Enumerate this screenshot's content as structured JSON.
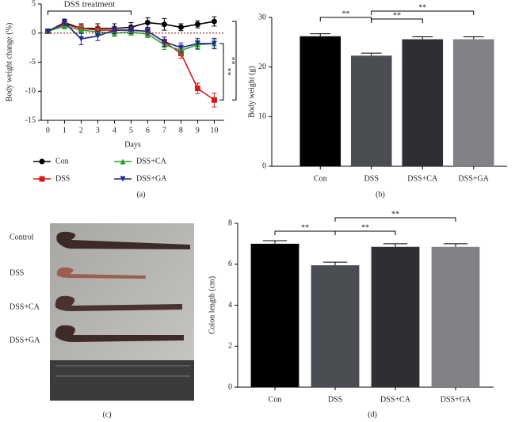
{
  "chart_data": [
    {
      "type": "line",
      "panel": "(a)",
      "annotation": "DSS treatment",
      "xlabel": "Days",
      "ylabel": "Body weight change (%)",
      "x": [
        0,
        1,
        2,
        3,
        4,
        5,
        6,
        7,
        8,
        9,
        10
      ],
      "xlim": [
        -0.4,
        10.6
      ],
      "xticks": [
        0,
        1,
        2,
        3,
        4,
        5,
        6,
        7,
        8,
        9,
        10
      ],
      "ylim": [
        -15,
        5
      ],
      "yticks": [
        -15,
        -10,
        -5,
        0,
        5
      ],
      "series": [
        {
          "name": "Con",
          "color": "#000000",
          "marker": "circle",
          "values": [
            0.3,
            1.8,
            0.8,
            0.8,
            0.8,
            1.0,
            1.8,
            1.5,
            1.0,
            1.5,
            2.0
          ],
          "errors": [
            0.3,
            0.6,
            0.8,
            0.8,
            0.8,
            0.8,
            0.8,
            1.0,
            0.6,
            0.6,
            0.8
          ]
        },
        {
          "name": "DSS",
          "color": "#d7191c",
          "marker": "square",
          "values": [
            0.3,
            1.5,
            0.8,
            0.5,
            0.5,
            0.5,
            0.3,
            -1.5,
            -3.5,
            -9.5,
            -11.5
          ],
          "errors": [
            0.3,
            0.5,
            0.6,
            0.6,
            0.6,
            0.6,
            0.6,
            0.8,
            0.8,
            0.9,
            1.2
          ]
        },
        {
          "name": "DSS+CA",
          "color": "#2ca02c",
          "marker": "triangle-up",
          "values": [
            0.3,
            1.2,
            0.5,
            0.2,
            0.0,
            0.2,
            -0.2,
            -2.0,
            -3.0,
            -2.0,
            -1.8
          ],
          "errors": [
            0.3,
            0.5,
            0.6,
            0.6,
            0.6,
            0.6,
            0.6,
            0.8,
            0.8,
            0.8,
            0.8
          ]
        },
        {
          "name": "DSS+GA",
          "color": "#1f2a8a",
          "marker": "triangle-down",
          "values": [
            0.3,
            1.8,
            -1.0,
            -0.5,
            0.5,
            0.5,
            0.3,
            -1.5,
            -2.5,
            -1.8,
            -1.8
          ],
          "errors": [
            0.3,
            0.5,
            1.0,
            0.8,
            0.6,
            0.6,
            0.6,
            0.8,
            0.8,
            0.9,
            0.9
          ]
        }
      ],
      "significance": [
        "**",
        "**"
      ]
    },
    {
      "type": "bar",
      "panel": "(b)",
      "ylabel": "Body weight (g)",
      "categories": [
        "Con",
        "DSS",
        "DSS+CA",
        "DSS+GA"
      ],
      "values": [
        26.2,
        22.3,
        25.6,
        25.6
      ],
      "errors": [
        0.5,
        0.5,
        0.5,
        0.5
      ],
      "colors": [
        "#000000",
        "#4a4d52",
        "#2e2f33",
        "#808285"
      ],
      "ylim": [
        0,
        30
      ],
      "yticks": [
        0,
        10,
        20,
        30
      ],
      "significance": [
        "**",
        "**",
        "**"
      ]
    },
    {
      "type": "bar",
      "panel": "(d)",
      "ylabel": "Colon length (cm)",
      "categories": [
        "Con",
        "DSS",
        "DSS+CA",
        "DSS+GA"
      ],
      "values": [
        7.0,
        5.95,
        6.85,
        6.85
      ],
      "errors": [
        0.15,
        0.15,
        0.15,
        0.15
      ],
      "colors": [
        "#000000",
        "#4a4d52",
        "#2e2f33",
        "#808285"
      ],
      "ylim": [
        0,
        8
      ],
      "yticks": [
        0,
        2,
        4,
        6,
        8
      ],
      "significance": [
        "**",
        "**",
        "**"
      ]
    }
  ],
  "photo": {
    "panel": "(c)",
    "labels": [
      "Control",
      "DSS",
      "DSS+CA",
      "DSS+GA"
    ]
  }
}
